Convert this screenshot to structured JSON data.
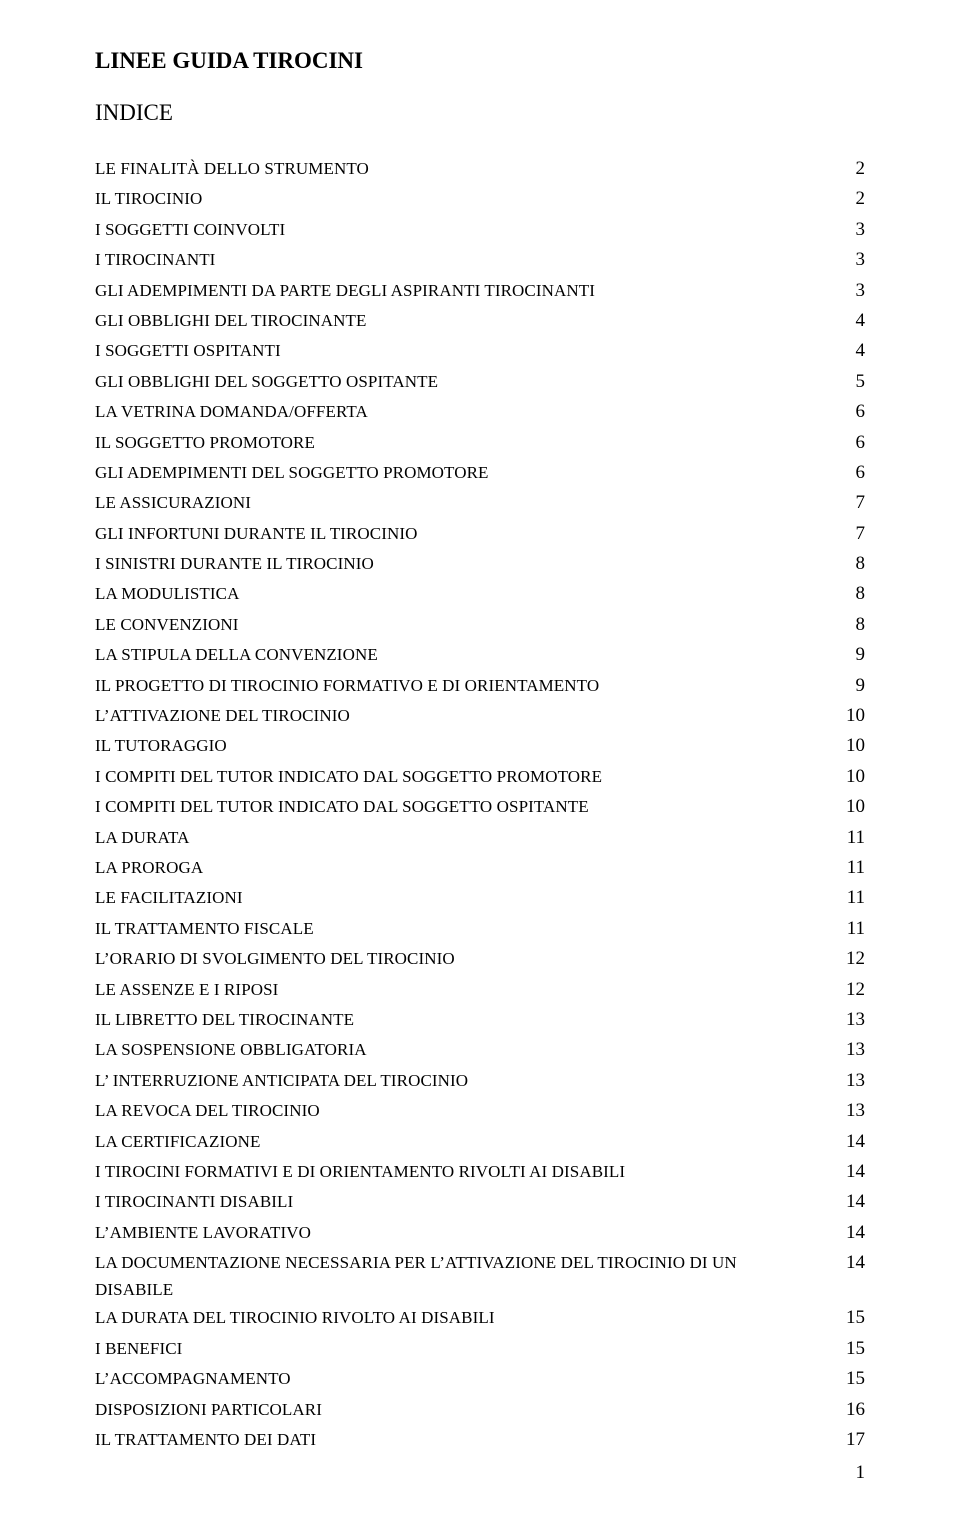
{
  "title": "LINEE GUIDA TIROCINI",
  "subtitle": "INDICE",
  "pageNumber": "1",
  "toc": [
    {
      "label": "LE FINALITÀ DELLO STRUMENTO",
      "page": "2"
    },
    {
      "label": "IL TIROCINIO",
      "page": "2"
    },
    {
      "label": "I SOGGETTI COINVOLTI",
      "page": "3"
    },
    {
      "label": "I TIROCINANTI",
      "page": "3"
    },
    {
      "label": "GLI ADEMPIMENTI DA PARTE DEGLI ASPIRANTI TIROCINANTI",
      "page": "3"
    },
    {
      "label": "GLI OBBLIGHI DEL TIROCINANTE",
      "page": "4"
    },
    {
      "label": "I SOGGETTI OSPITANTI",
      "page": "4"
    },
    {
      "label": "GLI OBBLIGHI DEL SOGGETTO OSPITANTE",
      "page": "5"
    },
    {
      "label": "LA VETRINA DOMANDA/OFFERTA",
      "page": "6"
    },
    {
      "label": "IL SOGGETTO PROMOTORE",
      "page": "6"
    },
    {
      "label": "GLI ADEMPIMENTI DEL SOGGETTO PROMOTORE",
      "page": "6"
    },
    {
      "label": "LE ASSICURAZIONI",
      "page": "7"
    },
    {
      "label": "GLI INFORTUNI DURANTE IL TIROCINIO",
      "page": "7"
    },
    {
      "label": "I SINISTRI DURANTE IL TIROCINIO",
      "page": "8"
    },
    {
      "label": "LA MODULISTICA",
      "page": "8"
    },
    {
      "label": "LE CONVENZIONI",
      "page": "8"
    },
    {
      "label": "LA STIPULA DELLA CONVENZIONE",
      "page": "9"
    },
    {
      "label": "IL PROGETTO DI TIROCINIO FORMATIVO E DI ORIENTAMENTO",
      "page": "9"
    },
    {
      "label": "L’ATTIVAZIONE DEL  TIROCINIO",
      "page": "10"
    },
    {
      "label": "IL TUTORAGGIO",
      "page": "10"
    },
    {
      "label": "I COMPITI DEL TUTOR INDICATO DAL SOGGETTO PROMOTORE",
      "page": "10"
    },
    {
      "label": "I COMPITI DEL TUTOR INDICATO DAL SOGGETTO OSPITANTE",
      "page": "10"
    },
    {
      "label": "LA DURATA",
      "page": "11"
    },
    {
      "label": "LA PROROGA",
      "page": "11"
    },
    {
      "label": "LE FACILITAZIONI",
      "page": "11"
    },
    {
      "label": "IL TRATTAMENTO FISCALE",
      "page": "11"
    },
    {
      "label": "L’ORARIO DI SVOLGIMENTO DEL TIROCINIO",
      "page": "12"
    },
    {
      "label": "LE ASSENZE E I RIPOSI",
      "page": "12"
    },
    {
      "label": "IL LIBRETTO DEL TIROCINANTE",
      "page": "13"
    },
    {
      "label": "LA SOSPENSIONE OBBLIGATORIA",
      "page": "13"
    },
    {
      "label": "L’ INTERRUZIONE ANTICIPATA DEL TIROCINIO",
      "page": "13"
    },
    {
      "label": "LA REVOCA DEL TIROCINIO",
      "page": "13"
    },
    {
      "label": "LA CERTIFICAZIONE",
      "page": "14"
    },
    {
      "label": "I TIROCINI FORMATIVI E DI ORIENTAMENTO RIVOLTI AI DISABILI",
      "page": "14"
    },
    {
      "label": "I TIROCINANTI DISABILI",
      "page": "14"
    },
    {
      "label": "L’AMBIENTE LAVORATIVO",
      "page": "14"
    },
    {
      "label": "LA DOCUMENTAZIONE NECESSARIA PER L’ATTIVAZIONE DEL TIROCINIO DI UN DISABILE",
      "page": "14"
    },
    {
      "label": "LA DURATA DEL TIROCINIO RIVOLTO AI DISABILI",
      "page": "15"
    },
    {
      "label": "I BENEFICI",
      "page": "15"
    },
    {
      "label": "L’ACCOMPAGNAMENTO",
      "page": "15"
    },
    {
      "label": "DISPOSIZIONI PARTICOLARI",
      "page": "16"
    },
    {
      "label": "IL TRATTAMENTO DEI DATI",
      "page": "17"
    }
  ]
}
